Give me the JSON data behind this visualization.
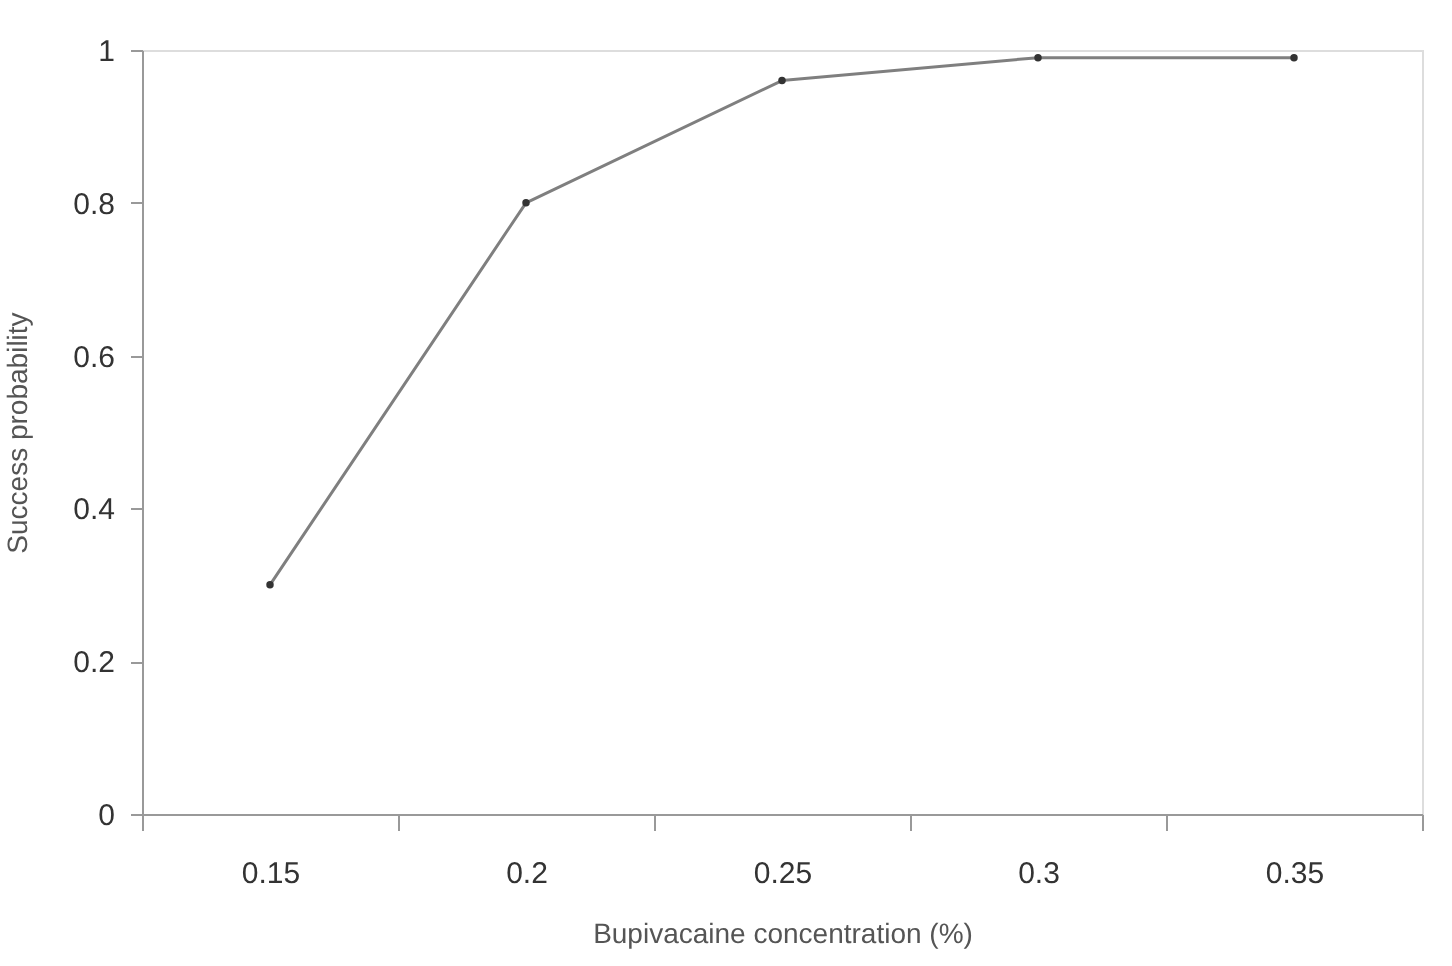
{
  "chart_data": {
    "type": "line",
    "xlabel": "Bupivacaine concentration (%)",
    "ylabel": "Success probability",
    "categories": [
      "0.15",
      "0.2",
      "0.25",
      "0.3",
      "0.35"
    ],
    "series": [
      {
        "color": "#7f7f7f",
        "values": [
          0.3,
          0.8,
          0.96,
          0.99,
          0.99
        ]
      }
    ],
    "ylim": [
      0,
      1
    ],
    "yticks": [
      0,
      0.2,
      0.4,
      0.6,
      0.8,
      1
    ],
    "grid": false,
    "marker": "circle",
    "line_style": "solid"
  }
}
